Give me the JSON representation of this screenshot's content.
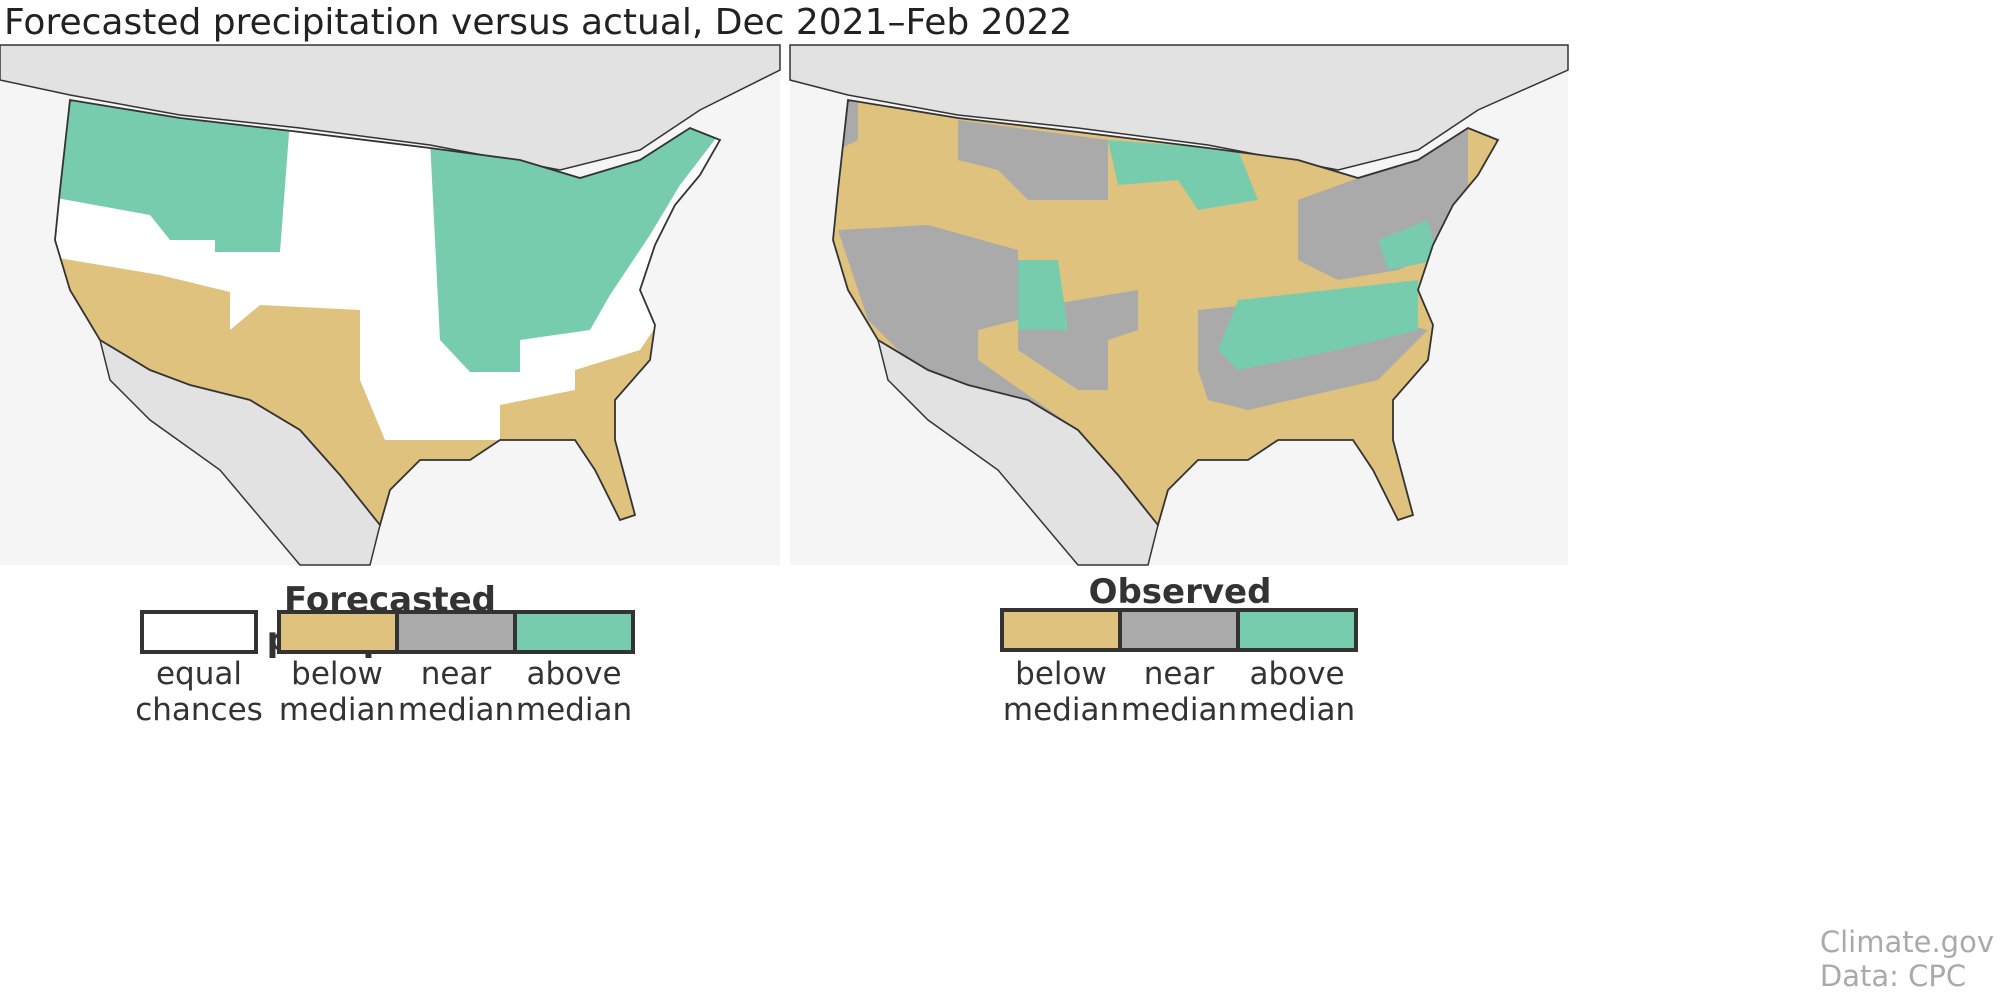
{
  "title": "Forecasted precipitation versus actual, Dec 2021–Feb 2022",
  "colors": {
    "equal": "#ffffff",
    "below": "#dfc27d",
    "near": "#aaaaaa",
    "above": "#77ccad",
    "ocean": "#f5f5f5",
    "land_other": "#e2e2e2"
  },
  "left_map": {
    "legend_title": "Forecasted precipitation",
    "legend": [
      {
        "key": "equal",
        "line1": "equal",
        "line2": "chances"
      },
      {
        "key": "below",
        "line1": "below",
        "line2": "median"
      },
      {
        "key": "near",
        "line1": "near",
        "line2": "median"
      },
      {
        "key": "above",
        "line1": "above",
        "line2": "median"
      }
    ]
  },
  "right_map": {
    "legend_title": "Observed precipitation",
    "legend": [
      {
        "key": "below",
        "line1": "below",
        "line2": "median"
      },
      {
        "key": "near",
        "line1": "near",
        "line2": "median"
      },
      {
        "key": "above",
        "line1": "above",
        "line2": "median"
      }
    ]
  },
  "credit": {
    "line1": "Climate.gov",
    "line2": "Data: CPC"
  }
}
